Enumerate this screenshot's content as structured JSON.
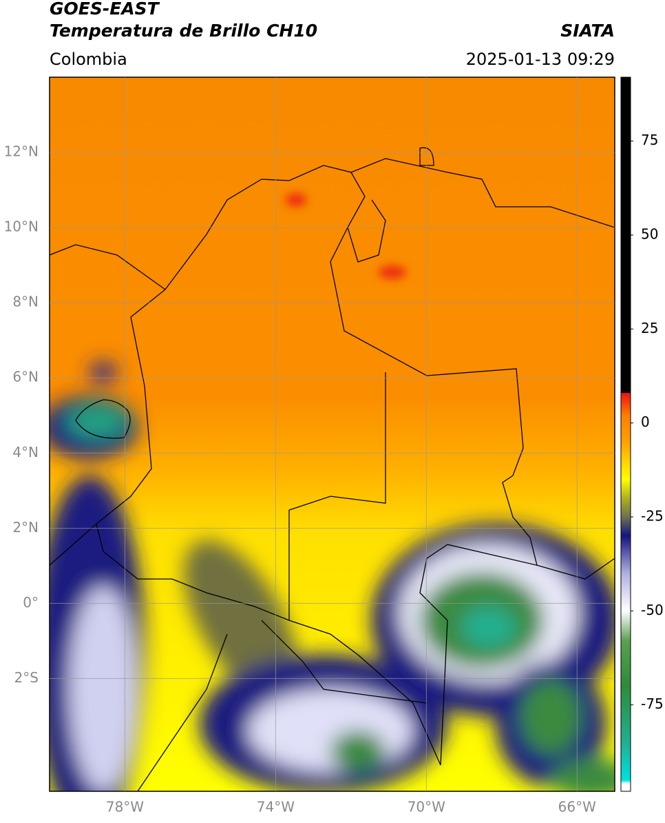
{
  "header": {
    "title": "GOES-EAST",
    "subtitle": "Temperatura de Brillo CH10",
    "source": "SIATA",
    "region": "Colombia",
    "datetime": "2025-01-13 09:29"
  },
  "map": {
    "xlim": [
      -80,
      -65
    ],
    "ylim": [
      -5,
      14
    ],
    "grid": true,
    "xticks": [
      {
        "value": -78,
        "label": "78°W"
      },
      {
        "value": -74,
        "label": "74°W"
      },
      {
        "value": -70,
        "label": "70°W"
      },
      {
        "value": -66,
        "label": "66°W"
      }
    ],
    "yticks": [
      {
        "value": 12,
        "label": "12°N"
      },
      {
        "value": 10,
        "label": "10°N"
      },
      {
        "value": 8,
        "label": "8°N"
      },
      {
        "value": 6,
        "label": "6°N"
      },
      {
        "value": 4,
        "label": "4°N"
      },
      {
        "value": 2,
        "label": "2°N"
      },
      {
        "value": 0,
        "label": "0°"
      },
      {
        "value": -2,
        "label": "2°S"
      }
    ]
  },
  "colorbar": {
    "lim": [
      -98,
      92
    ],
    "ticks": [
      75,
      50,
      25,
      0,
      -25,
      -50,
      -75
    ],
    "stops": [
      {
        "value": -98,
        "color": "#ffffff"
      },
      {
        "value": -96,
        "color": "#ffffff"
      },
      {
        "value": -95,
        "color": "#00e0e0"
      },
      {
        "value": -85,
        "color": "#20b090"
      },
      {
        "value": -70,
        "color": "#2e8b3a"
      },
      {
        "value": -58,
        "color": "#5aa050"
      },
      {
        "value": -50,
        "color": "#ffffff"
      },
      {
        "value": -40,
        "color": "#b0b0e0"
      },
      {
        "value": -30,
        "color": "#141480"
      },
      {
        "value": -25,
        "color": "#707050"
      },
      {
        "value": -20,
        "color": "#b0b020"
      },
      {
        "value": -15,
        "color": "#ffff00"
      },
      {
        "value": -5,
        "color": "#ffa000"
      },
      {
        "value": 2,
        "color": "#ff8000"
      },
      {
        "value": 8,
        "color": "#ee1010"
      },
      {
        "value": 8.01,
        "color": "#000000"
      },
      {
        "value": 92,
        "color": "#000000"
      }
    ]
  }
}
